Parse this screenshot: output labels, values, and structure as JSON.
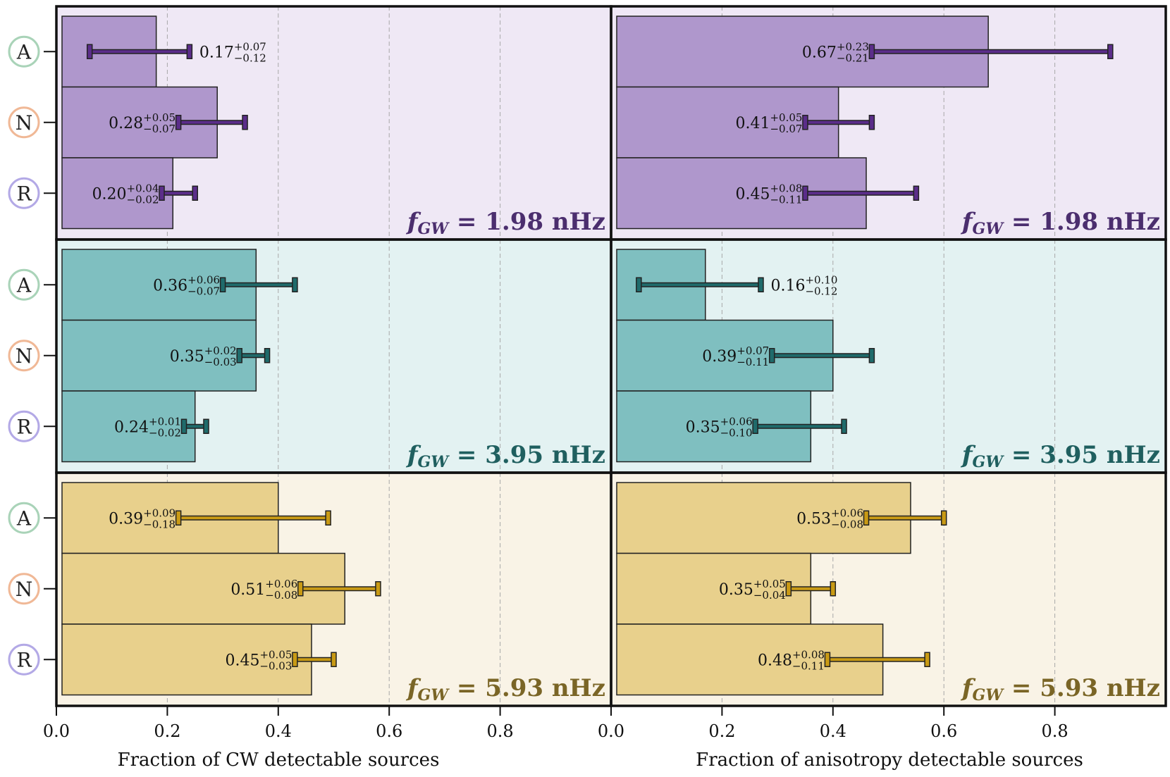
{
  "chart_data": {
    "type": "bar",
    "orientation": "horizontal",
    "row_categories": [
      "A",
      "N",
      "R"
    ],
    "row_category_colors": {
      "A": "#a9d3b8",
      "N": "#f0b896",
      "R": "#b3a9e6"
    },
    "columns": [
      {
        "xlabel": "Fraction of CW detectable sources",
        "xlim": [
          0,
          1
        ],
        "xticks": [
          "0.0",
          "0.2",
          "0.4",
          "0.6",
          "0.8"
        ]
      },
      {
        "xlabel": "Fraction of anisotropy detectable sources",
        "xlim": [
          0,
          1
        ],
        "xticks": [
          "0.0",
          "0.2",
          "0.4",
          "0.6",
          "0.8"
        ]
      }
    ],
    "frequency_rows": [
      {
        "freq_label": "f_GW = 1.98 nHz",
        "freq_prefix": "f",
        "freq_sub": "GW",
        "freq_rest": " = 1.98 nHz",
        "bg": "#efe8f5",
        "bar": "#af97cc",
        "err": "#5b2d8a",
        "label_color": "#4b2e6e"
      },
      {
        "freq_label": "f_GW = 3.95 nHz",
        "freq_prefix": "f",
        "freq_sub": "GW",
        "freq_rest": " = 3.95 nHz",
        "bg": "#e3f2f2",
        "bar": "#7fbfc0",
        "err": "#1f6b6b",
        "label_color": "#1f5f5f"
      },
      {
        "freq_label": "f_GW = 5.93 nHz",
        "freq_prefix": "f",
        "freq_sub": "GW",
        "freq_rest": " = 5.93 nHz",
        "bg": "#f9f3e6",
        "bar": "#e8d08c",
        "err": "#c99a14",
        "label_color": "#7a6526"
      }
    ],
    "panels": [
      {
        "col": 0,
        "freq": 0,
        "bars": [
          {
            "cat": "A",
            "value": 0.17,
            "bar": 0.18,
            "lo": 0.06,
            "hi": 0.24,
            "val": "0.17",
            "plus": "+0.07",
            "minus": "−0.12",
            "label_side": "right"
          },
          {
            "cat": "N",
            "value": 0.28,
            "bar": 0.29,
            "lo": 0.22,
            "hi": 0.34,
            "val": "0.28",
            "plus": "+0.05",
            "minus": "−0.07",
            "label_side": "left"
          },
          {
            "cat": "R",
            "value": 0.2,
            "bar": 0.21,
            "lo": 0.19,
            "hi": 0.25,
            "val": "0.20",
            "plus": "+0.04",
            "minus": "−0.02",
            "label_side": "left"
          }
        ]
      },
      {
        "col": 1,
        "freq": 0,
        "bars": [
          {
            "cat": "A",
            "value": 0.67,
            "bar": 0.68,
            "lo": 0.47,
            "hi": 0.9,
            "val": "0.67",
            "plus": "+0.23",
            "minus": "−0.21",
            "label_side": "left"
          },
          {
            "cat": "N",
            "value": 0.41,
            "bar": 0.41,
            "lo": 0.35,
            "hi": 0.47,
            "val": "0.41",
            "plus": "+0.05",
            "minus": "−0.07",
            "label_side": "left"
          },
          {
            "cat": "R",
            "value": 0.45,
            "bar": 0.46,
            "lo": 0.35,
            "hi": 0.55,
            "val": "0.45",
            "plus": "+0.08",
            "minus": "−0.11",
            "label_side": "left"
          }
        ]
      },
      {
        "col": 0,
        "freq": 1,
        "bars": [
          {
            "cat": "A",
            "value": 0.36,
            "bar": 0.36,
            "lo": 0.3,
            "hi": 0.43,
            "val": "0.36",
            "plus": "+0.06",
            "minus": "−0.07",
            "label_side": "left"
          },
          {
            "cat": "N",
            "value": 0.35,
            "bar": 0.36,
            "lo": 0.33,
            "hi": 0.38,
            "val": "0.35",
            "plus": "+0.02",
            "minus": "−0.03",
            "label_side": "left"
          },
          {
            "cat": "R",
            "value": 0.24,
            "bar": 0.25,
            "lo": 0.23,
            "hi": 0.27,
            "val": "0.24",
            "plus": "+0.01",
            "minus": "−0.02",
            "label_side": "left"
          }
        ]
      },
      {
        "col": 1,
        "freq": 1,
        "bars": [
          {
            "cat": "A",
            "value": 0.16,
            "bar": 0.17,
            "lo": 0.05,
            "hi": 0.27,
            "val": "0.16",
            "plus": "+0.10",
            "minus": "−0.12",
            "label_side": "right"
          },
          {
            "cat": "N",
            "value": 0.39,
            "bar": 0.4,
            "lo": 0.29,
            "hi": 0.47,
            "val": "0.39",
            "plus": "+0.07",
            "minus": "−0.11",
            "label_side": "left"
          },
          {
            "cat": "R",
            "value": 0.35,
            "bar": 0.36,
            "lo": 0.26,
            "hi": 0.42,
            "val": "0.35",
            "plus": "+0.06",
            "minus": "−0.10",
            "label_side": "left"
          }
        ]
      },
      {
        "col": 0,
        "freq": 2,
        "bars": [
          {
            "cat": "A",
            "value": 0.39,
            "bar": 0.4,
            "lo": 0.22,
            "hi": 0.49,
            "val": "0.39",
            "plus": "+0.09",
            "minus": "−0.18",
            "label_side": "left"
          },
          {
            "cat": "N",
            "value": 0.51,
            "bar": 0.52,
            "lo": 0.44,
            "hi": 0.58,
            "val": "0.51",
            "plus": "+0.06",
            "minus": "−0.08",
            "label_side": "left"
          },
          {
            "cat": "R",
            "value": 0.45,
            "bar": 0.46,
            "lo": 0.43,
            "hi": 0.5,
            "val": "0.45",
            "plus": "+0.05",
            "minus": "−0.03",
            "label_side": "left"
          }
        ]
      },
      {
        "col": 1,
        "freq": 2,
        "bars": [
          {
            "cat": "A",
            "value": 0.53,
            "bar": 0.54,
            "lo": 0.46,
            "hi": 0.6,
            "val": "0.53",
            "plus": "+0.06",
            "minus": "−0.08",
            "label_side": "left"
          },
          {
            "cat": "N",
            "value": 0.35,
            "bar": 0.36,
            "lo": 0.32,
            "hi": 0.4,
            "val": "0.35",
            "plus": "+0.05",
            "minus": "−0.04",
            "label_side": "left"
          },
          {
            "cat": "R",
            "value": 0.48,
            "bar": 0.49,
            "lo": 0.39,
            "hi": 0.57,
            "val": "0.48",
            "plus": "+0.08",
            "minus": "−0.11",
            "label_side": "left"
          }
        ]
      }
    ],
    "grid": "vertical dashed",
    "legend": "none"
  }
}
